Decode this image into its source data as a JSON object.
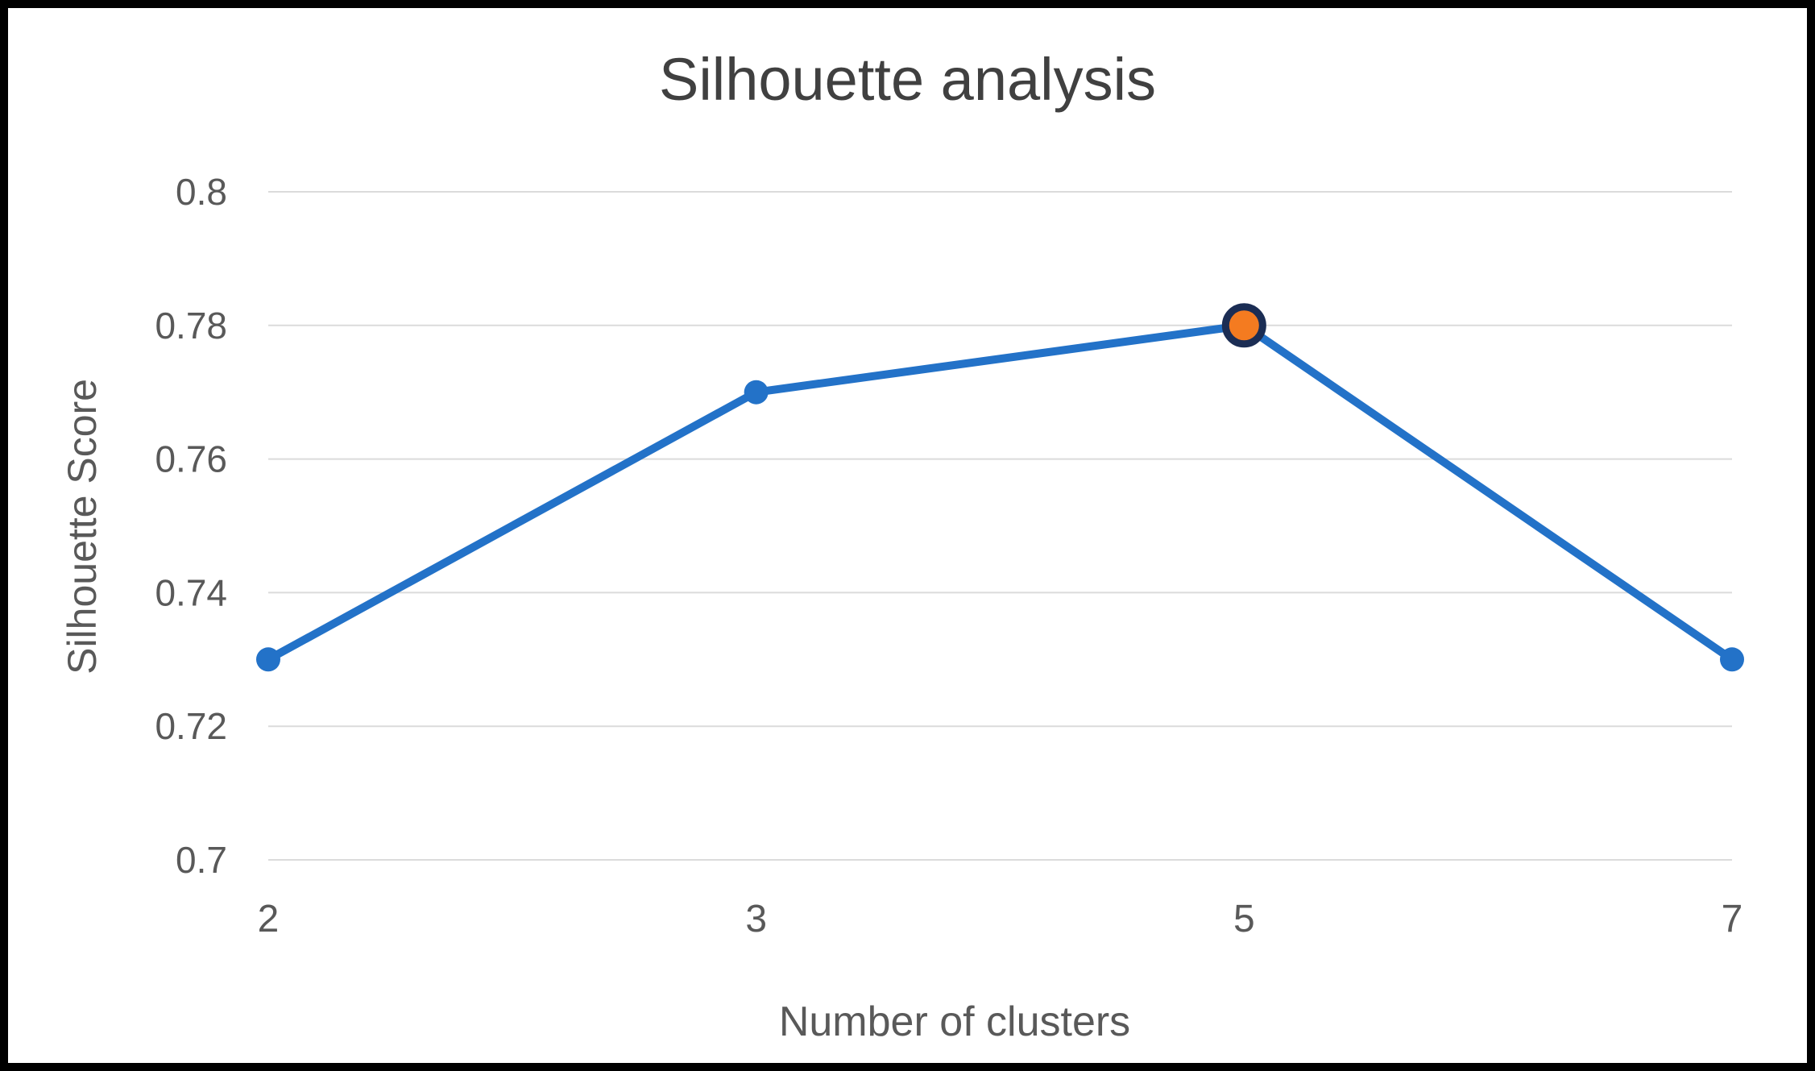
{
  "window": {
    "background": "#FFFFFF",
    "border_color": "#000000"
  },
  "chart_data": {
    "type": "line",
    "title": "Silhouette analysis",
    "xlabel": "Number of clusters",
    "ylabel": "Silhouette Score",
    "categories": [
      "2",
      "3",
      "5",
      "7"
    ],
    "series": [
      {
        "name": "Silhouette Score",
        "values": [
          0.73,
          0.77,
          0.78,
          0.73
        ]
      }
    ],
    "ylim": [
      0.7,
      0.8
    ],
    "ytick_labels": [
      "0.7",
      "0.72",
      "0.74",
      "0.76",
      "0.78",
      "0.8"
    ],
    "ytick_values": [
      0.7,
      0.72,
      0.74,
      0.76,
      0.78,
      0.8
    ],
    "grid": true,
    "legend_position": "none",
    "highlight_point": {
      "category": "5",
      "index": 2,
      "value": 0.78
    },
    "colors": {
      "line": "#2372C8",
      "marker": "#2372C8",
      "highlight_fill": "#F47B20",
      "highlight_border": "#1B2D54",
      "gridline": "#DBDBDB",
      "title_text": "#404040",
      "axis_text": "#595959"
    }
  }
}
